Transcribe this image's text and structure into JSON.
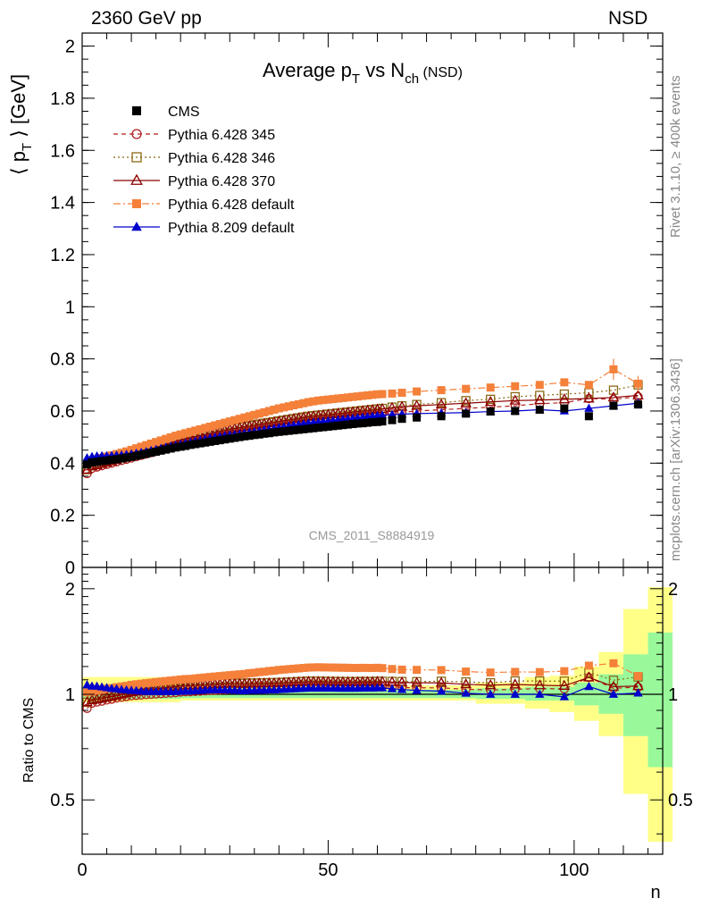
{
  "header": {
    "left": "2360 GeV pp",
    "right": "NSD"
  },
  "side_labels": {
    "rivet": "Rivet 3.1.10, ≥ 400k events",
    "mcplots": "mcplots.cern.ch [arXiv:1306.3436]"
  },
  "watermark": "CMS_2011_S8884919",
  "chart_data": {
    "type": "scatter",
    "title": {
      "main": "Average p",
      "sub1": "T",
      "mid": " vs N",
      "sub2": "ch",
      "tail": " (NSD)"
    },
    "ylabel_main": "⟨ p",
    "ylabel_sub": "T",
    "ylabel_tail": " ⟩ [GeV]",
    "ratio_ylabel": "Ratio to CMS",
    "xlabel": "n",
    "xlim": [
      0,
      118
    ],
    "ylim": [
      0,
      2.05
    ],
    "ratio_ylim": [
      0.35,
      2.3
    ],
    "ratio_scale": "log",
    "x_ticks": [
      "0",
      "50",
      "100"
    ],
    "y_ticks": [
      "0",
      "0.2",
      "0.4",
      "0.6",
      "0.8",
      "1",
      "1.2",
      "1.4",
      "1.6",
      "1.8",
      "2"
    ],
    "ratio_ticks": [
      "0.5",
      "1",
      "2"
    ],
    "x": [
      1,
      2,
      3,
      4,
      5,
      6,
      7,
      8,
      9,
      10,
      11,
      12,
      13,
      14,
      15,
      16,
      17,
      18,
      19,
      20,
      21,
      22,
      23,
      24,
      25,
      26,
      27,
      28,
      29,
      30,
      31,
      32,
      33,
      34,
      35,
      36,
      37,
      38,
      39,
      40,
      41,
      42,
      43,
      44,
      45,
      46,
      47,
      48,
      49,
      50,
      51,
      52,
      53,
      54,
      55,
      56,
      57,
      58,
      59,
      60,
      61,
      63,
      65,
      68,
      73,
      78,
      83,
      88,
      93,
      98,
      103,
      108,
      113
    ],
    "bands": {
      "inner_green": [
        [
          0,
          0.97,
          1.05
        ],
        [
          20,
          0.975,
          1.04
        ],
        [
          50,
          0.975,
          1.03
        ],
        [
          80,
          0.97,
          1.04
        ],
        [
          90,
          0.96,
          1.05
        ],
        [
          95,
          0.96,
          1.05
        ],
        [
          100,
          0.93,
          1.08
        ],
        [
          105,
          0.88,
          1.14
        ],
        [
          110,
          0.76,
          1.3
        ],
        [
          115,
          0.62,
          1.5
        ]
      ],
      "outer_yellow": [
        [
          0,
          0.95,
          1.12
        ],
        [
          20,
          0.96,
          1.07
        ],
        [
          50,
          0.96,
          1.06
        ],
        [
          80,
          0.94,
          1.08
        ],
        [
          90,
          0.91,
          1.12
        ],
        [
          95,
          0.89,
          1.13
        ],
        [
          100,
          0.84,
          1.2
        ],
        [
          105,
          0.76,
          1.32
        ],
        [
          110,
          0.52,
          1.75
        ],
        [
          115,
          0.38,
          2.02
        ]
      ]
    },
    "series": [
      {
        "name": "CMS",
        "color": "#000000",
        "marker": "square-filled",
        "dash": "",
        "values": [
          0.395,
          0.403,
          0.405,
          0.408,
          0.41,
          0.413,
          0.415,
          0.418,
          0.421,
          0.424,
          0.428,
          0.432,
          0.436,
          0.44,
          0.444,
          0.448,
          0.452,
          0.456,
          0.46,
          0.463,
          0.466,
          0.47,
          0.473,
          0.476,
          0.479,
          0.482,
          0.485,
          0.488,
          0.491,
          0.494,
          0.497,
          0.5,
          0.503,
          0.505,
          0.508,
          0.51,
          0.513,
          0.515,
          0.518,
          0.52,
          0.522,
          0.524,
          0.526,
          0.528,
          0.53,
          0.532,
          0.534,
          0.536,
          0.538,
          0.54,
          0.542,
          0.544,
          0.546,
          0.548,
          0.55,
          0.552,
          0.553,
          0.555,
          0.557,
          0.558,
          0.56,
          0.565,
          0.57,
          0.575,
          0.58,
          0.59,
          0.598,
          0.6,
          0.605,
          0.61,
          0.58,
          0.62,
          0.625
        ]
      },
      {
        "name": "Pythia 6.428 345",
        "color": "#b22222",
        "marker": "circle-open",
        "dash": "5,4",
        "values": [
          0.36,
          0.38,
          0.385,
          0.39,
          0.395,
          0.4,
          0.405,
          0.41,
          0.415,
          0.42,
          0.425,
          0.43,
          0.435,
          0.44,
          0.445,
          0.45,
          0.455,
          0.46,
          0.465,
          0.47,
          0.474,
          0.478,
          0.482,
          0.486,
          0.49,
          0.494,
          0.498,
          0.502,
          0.506,
          0.51,
          0.513,
          0.516,
          0.519,
          0.522,
          0.525,
          0.528,
          0.531,
          0.534,
          0.537,
          0.54,
          0.543,
          0.546,
          0.549,
          0.552,
          0.555,
          0.558,
          0.56,
          0.562,
          0.564,
          0.566,
          0.568,
          0.57,
          0.572,
          0.574,
          0.576,
          0.578,
          0.58,
          0.582,
          0.584,
          0.586,
          0.588,
          0.592,
          0.596,
          0.6,
          0.605,
          0.61,
          0.615,
          0.62,
          0.628,
          0.632,
          0.648,
          0.645,
          0.655
        ]
      },
      {
        "name": "Pythia 6.428 346",
        "color": "#8b6914",
        "marker": "square-open",
        "dash": "2,3",
        "values": [
          0.375,
          0.39,
          0.395,
          0.4,
          0.405,
          0.41,
          0.415,
          0.42,
          0.425,
          0.432,
          0.438,
          0.444,
          0.45,
          0.456,
          0.462,
          0.468,
          0.474,
          0.48,
          0.486,
          0.491,
          0.496,
          0.5,
          0.504,
          0.508,
          0.512,
          0.516,
          0.52,
          0.524,
          0.528,
          0.532,
          0.535,
          0.538,
          0.541,
          0.544,
          0.547,
          0.55,
          0.553,
          0.556,
          0.559,
          0.562,
          0.565,
          0.568,
          0.571,
          0.574,
          0.577,
          0.58,
          0.582,
          0.584,
          0.586,
          0.588,
          0.59,
          0.592,
          0.594,
          0.596,
          0.598,
          0.6,
          0.602,
          0.604,
          0.606,
          0.608,
          0.61,
          0.615,
          0.62,
          0.625,
          0.632,
          0.64,
          0.645,
          0.655,
          0.66,
          0.665,
          0.67,
          0.68,
          0.7
        ]
      },
      {
        "name": "Pythia 6.428 370",
        "color": "#8b0000",
        "marker": "triangle-open",
        "dash": "",
        "values": [
          0.375,
          0.388,
          0.392,
          0.397,
          0.402,
          0.407,
          0.412,
          0.418,
          0.424,
          0.43,
          0.436,
          0.442,
          0.448,
          0.454,
          0.46,
          0.466,
          0.472,
          0.478,
          0.484,
          0.489,
          0.494,
          0.498,
          0.502,
          0.506,
          0.51,
          0.514,
          0.518,
          0.522,
          0.526,
          0.53,
          0.533,
          0.536,
          0.539,
          0.542,
          0.545,
          0.548,
          0.551,
          0.554,
          0.557,
          0.56,
          0.563,
          0.566,
          0.569,
          0.572,
          0.575,
          0.578,
          0.58,
          0.582,
          0.584,
          0.586,
          0.588,
          0.59,
          0.592,
          0.594,
          0.596,
          0.598,
          0.6,
          0.602,
          0.604,
          0.606,
          0.608,
          0.612,
          0.616,
          0.62,
          0.625,
          0.63,
          0.635,
          0.64,
          0.642,
          0.645,
          0.648,
          0.652,
          0.66
        ]
      },
      {
        "name": "Pythia 6.428 default",
        "color": "#f4803a",
        "marker": "square-filled",
        "dash": "8,3,2,3",
        "values": [
          0.4,
          0.41,
          0.415,
          0.42,
          0.425,
          0.43,
          0.435,
          0.44,
          0.445,
          0.451,
          0.457,
          0.463,
          0.469,
          0.475,
          0.481,
          0.487,
          0.493,
          0.499,
          0.505,
          0.51,
          0.515,
          0.52,
          0.525,
          0.53,
          0.535,
          0.54,
          0.545,
          0.55,
          0.555,
          0.56,
          0.565,
          0.57,
          0.575,
          0.58,
          0.585,
          0.59,
          0.595,
          0.6,
          0.605,
          0.61,
          0.614,
          0.618,
          0.622,
          0.626,
          0.63,
          0.634,
          0.637,
          0.64,
          0.642,
          0.644,
          0.646,
          0.648,
          0.65,
          0.652,
          0.654,
          0.656,
          0.658,
          0.66,
          0.662,
          0.664,
          0.665,
          0.667,
          0.67,
          0.675,
          0.68,
          0.685,
          0.69,
          0.695,
          0.7,
          0.71,
          0.7,
          0.76,
          0.705
        ]
      },
      {
        "name": "Pythia 8.209 default",
        "color": "#0000cc",
        "marker": "triangle-filled",
        "dash": "",
        "values": [
          0.42,
          0.425,
          0.427,
          0.428,
          0.428,
          0.429,
          0.43,
          0.431,
          0.433,
          0.435,
          0.438,
          0.441,
          0.444,
          0.448,
          0.452,
          0.456,
          0.46,
          0.464,
          0.468,
          0.472,
          0.476,
          0.48,
          0.484,
          0.488,
          0.492,
          0.496,
          0.499,
          0.502,
          0.505,
          0.508,
          0.51,
          0.512,
          0.515,
          0.518,
          0.521,
          0.524,
          0.527,
          0.53,
          0.533,
          0.536,
          0.539,
          0.542,
          0.545,
          0.548,
          0.551,
          0.554,
          0.556,
          0.558,
          0.56,
          0.562,
          0.564,
          0.566,
          0.568,
          0.57,
          0.572,
          0.574,
          0.576,
          0.578,
          0.58,
          0.582,
          0.584,
          0.586,
          0.588,
          0.59,
          0.592,
          0.594,
          0.598,
          0.6,
          0.605,
          0.6,
          0.61,
          0.62,
          0.63
        ]
      }
    ]
  }
}
